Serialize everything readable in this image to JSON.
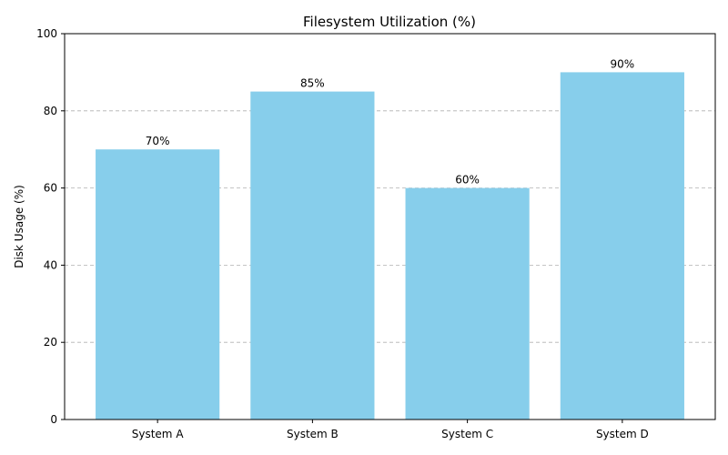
{
  "chart_data": {
    "type": "bar",
    "title": "Filesystem Utilization (%)",
    "xlabel": "",
    "ylabel": "Disk Usage (%)",
    "categories": [
      "System A",
      "System B",
      "System C",
      "System D"
    ],
    "values": [
      70,
      85,
      60,
      90
    ],
    "data_labels": [
      "70%",
      "85%",
      "60%",
      "90%"
    ],
    "ylim": [
      0,
      100
    ],
    "yticks": [
      0,
      20,
      40,
      60,
      80,
      100
    ],
    "grid": "y-dashed",
    "bar_color": "#87ceeb"
  }
}
